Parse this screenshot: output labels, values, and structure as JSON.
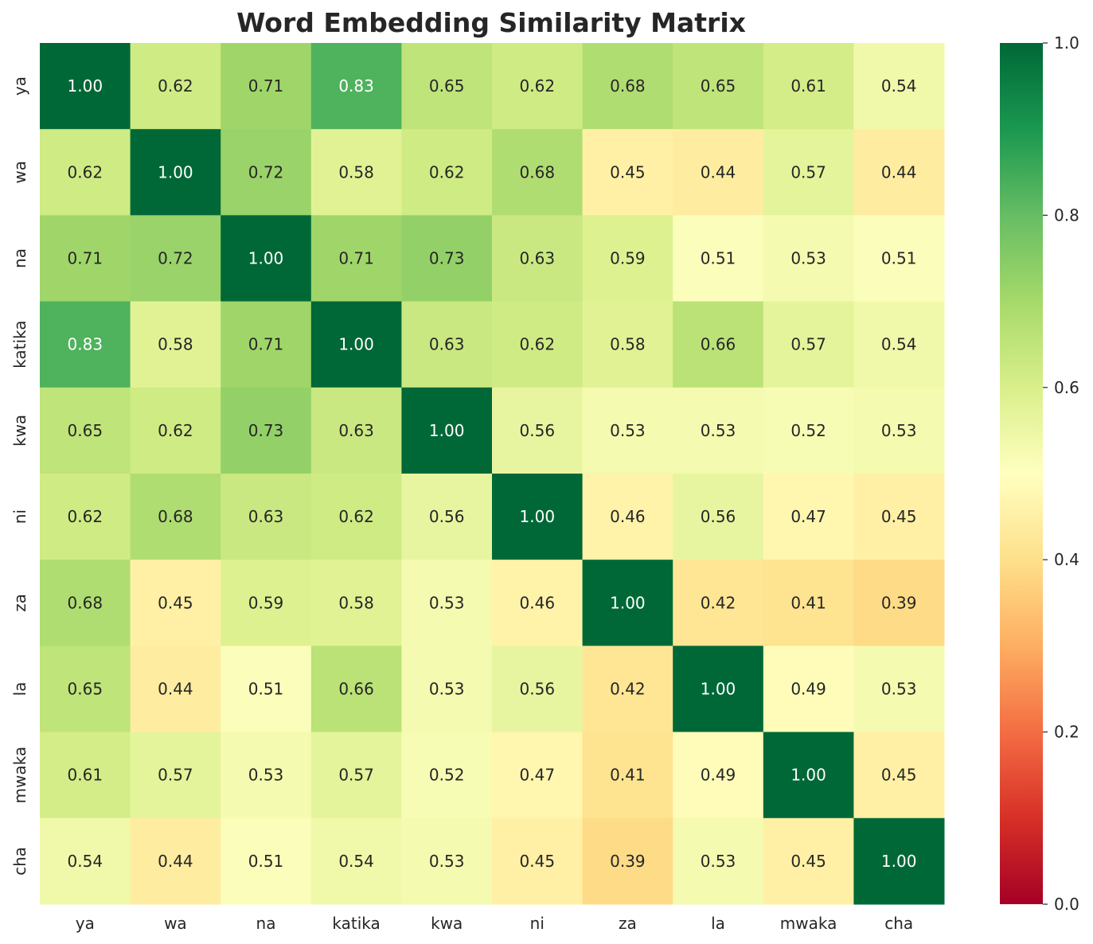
{
  "chart_data": {
    "type": "heatmap",
    "title": "Word Embedding Similarity Matrix",
    "labels": [
      "ya",
      "wa",
      "na",
      "katika",
      "kwa",
      "ni",
      "za",
      "la",
      "mwaka",
      "cha"
    ],
    "matrix": [
      [
        1.0,
        0.62,
        0.71,
        0.83,
        0.65,
        0.62,
        0.68,
        0.65,
        0.61,
        0.54
      ],
      [
        0.62,
        1.0,
        0.72,
        0.58,
        0.62,
        0.68,
        0.45,
        0.44,
        0.57,
        0.44
      ],
      [
        0.71,
        0.72,
        1.0,
        0.71,
        0.73,
        0.63,
        0.59,
        0.51,
        0.53,
        0.51
      ],
      [
        0.83,
        0.58,
        0.71,
        1.0,
        0.63,
        0.62,
        0.58,
        0.66,
        0.57,
        0.54
      ],
      [
        0.65,
        0.62,
        0.73,
        0.63,
        1.0,
        0.56,
        0.53,
        0.53,
        0.52,
        0.53
      ],
      [
        0.62,
        0.68,
        0.63,
        0.62,
        0.56,
        1.0,
        0.46,
        0.56,
        0.47,
        0.45
      ],
      [
        0.68,
        0.45,
        0.59,
        0.58,
        0.53,
        0.46,
        1.0,
        0.42,
        0.41,
        0.39
      ],
      [
        0.65,
        0.44,
        0.51,
        0.66,
        0.53,
        0.56,
        0.42,
        1.0,
        0.49,
        0.53
      ],
      [
        0.61,
        0.57,
        0.53,
        0.57,
        0.52,
        0.47,
        0.41,
        0.49,
        1.0,
        0.45
      ],
      [
        0.54,
        0.44,
        0.51,
        0.54,
        0.53,
        0.45,
        0.39,
        0.53,
        0.45,
        1.0
      ]
    ],
    "value_format": "2 decimals",
    "colormap": "RdYlGn",
    "vmin": 0.0,
    "vmax": 1.0,
    "colorbar_ticks": [
      "0.0",
      "0.2",
      "0.4",
      "0.6",
      "0.8",
      "1.0"
    ],
    "colorbar_tick_values": [
      0.0,
      0.2,
      0.4,
      0.6,
      0.8,
      1.0
    ],
    "grid": false,
    "legend": "colorbar right"
  }
}
